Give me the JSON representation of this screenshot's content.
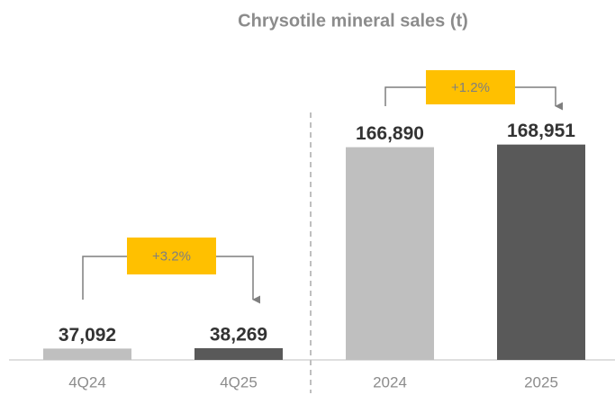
{
  "title": "Chrysotile mineral sales (t)",
  "chart_data": [
    {
      "type": "bar",
      "categories": [
        "4Q24",
        "4Q25"
      ],
      "values": [
        37092,
        38269
      ],
      "value_labels": [
        "37,092",
        "38,269"
      ],
      "colors": [
        "#bfbfbf",
        "#595959"
      ],
      "ylim": [
        0,
        1000000
      ],
      "annotation": "+3.2%"
    },
    {
      "type": "bar",
      "categories": [
        "2024",
        "2025"
      ],
      "values": [
        166890,
        168951
      ],
      "value_labels": [
        "166,890",
        "168,951"
      ],
      "colors": [
        "#bfbfbf",
        "#595959"
      ],
      "ylim": [
        0,
        240000
      ],
      "annotation": "+1.2%"
    }
  ]
}
